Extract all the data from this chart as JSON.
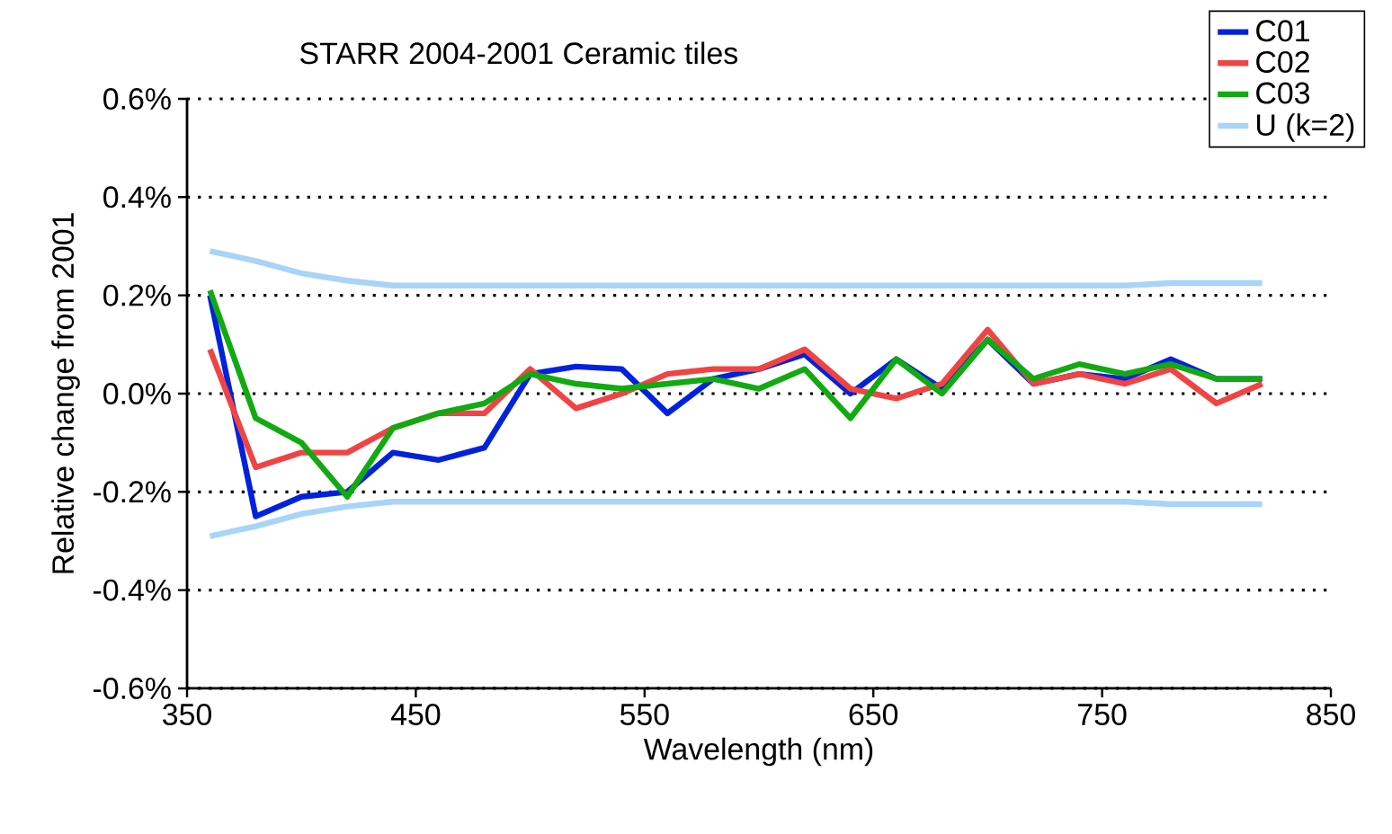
{
  "chart_data": {
    "type": "line",
    "title": "STARR 2004-2001 Ceramic tiles",
    "xlabel": "Wavelength (nm)",
    "ylabel": "Relative change from 2001",
    "x": [
      360,
      380,
      400,
      420,
      440,
      460,
      480,
      500,
      520,
      540,
      560,
      580,
      600,
      620,
      640,
      660,
      680,
      700,
      720,
      740,
      760,
      780,
      800,
      820
    ],
    "series": [
      {
        "name": "C01",
        "color": "#0022dd",
        "values": [
          0.2,
          -0.25,
          -0.21,
          -0.2,
          -0.12,
          -0.135,
          -0.11,
          0.04,
          0.055,
          0.05,
          -0.04,
          0.03,
          0.05,
          0.08,
          0.0,
          0.07,
          0.01,
          0.11,
          0.02,
          0.04,
          0.03,
          0.07,
          0.03,
          0.03
        ]
      },
      {
        "name": "C02",
        "color": "#f04444",
        "values": [
          0.09,
          -0.15,
          -0.12,
          -0.12,
          -0.07,
          -0.04,
          -0.04,
          0.05,
          -0.03,
          0.0,
          0.04,
          0.05,
          0.05,
          0.09,
          0.01,
          -0.01,
          0.02,
          0.13,
          0.02,
          0.04,
          0.02,
          0.05,
          -0.02,
          0.02
        ]
      },
      {
        "name": "C03",
        "color": "#11aa11",
        "values": [
          0.21,
          -0.05,
          -0.1,
          -0.21,
          -0.07,
          -0.04,
          -0.02,
          0.04,
          0.02,
          0.01,
          0.02,
          0.03,
          0.01,
          0.05,
          -0.05,
          0.07,
          0.0,
          0.11,
          0.03,
          0.06,
          0.04,
          0.06,
          0.03,
          0.03
        ]
      },
      {
        "name": "U (k=2)",
        "color": "#a8d4f8",
        "values": [
          0.29,
          0.27,
          0.245,
          0.23,
          0.22,
          0.22,
          0.22,
          0.22,
          0.22,
          0.22,
          0.22,
          0.22,
          0.22,
          0.22,
          0.22,
          0.22,
          0.22,
          0.22,
          0.22,
          0.22,
          0.22,
          0.225,
          0.225,
          0.225
        ]
      },
      {
        "color": "#a8d4f8",
        "values": [
          -0.29,
          -0.27,
          -0.245,
          -0.23,
          -0.22,
          -0.22,
          -0.22,
          -0.22,
          -0.22,
          -0.22,
          -0.22,
          -0.22,
          -0.22,
          -0.22,
          -0.22,
          -0.22,
          -0.22,
          -0.22,
          -0.22,
          -0.22,
          -0.22,
          -0.225,
          -0.225,
          -0.225
        ]
      }
    ],
    "xlim": [
      350,
      850
    ],
    "xticks": [
      350,
      450,
      550,
      650,
      750,
      850
    ],
    "ylim": [
      -0.6,
      0.6
    ],
    "yticks": [
      {
        "value": -0.6,
        "label": "-0.6%"
      },
      {
        "value": -0.4,
        "label": "-0.4%"
      },
      {
        "value": -0.2,
        "label": "-0.2%"
      },
      {
        "value": 0,
        "label": "0.0%"
      },
      {
        "value": 0.2,
        "label": "0.2%"
      },
      {
        "value": 0.4,
        "label": "0.4%"
      },
      {
        "value": 0.6,
        "label": "0.6%"
      }
    ],
    "grid": "y",
    "legend": "top right",
    "marker": "none",
    "line_style": "solid"
  }
}
